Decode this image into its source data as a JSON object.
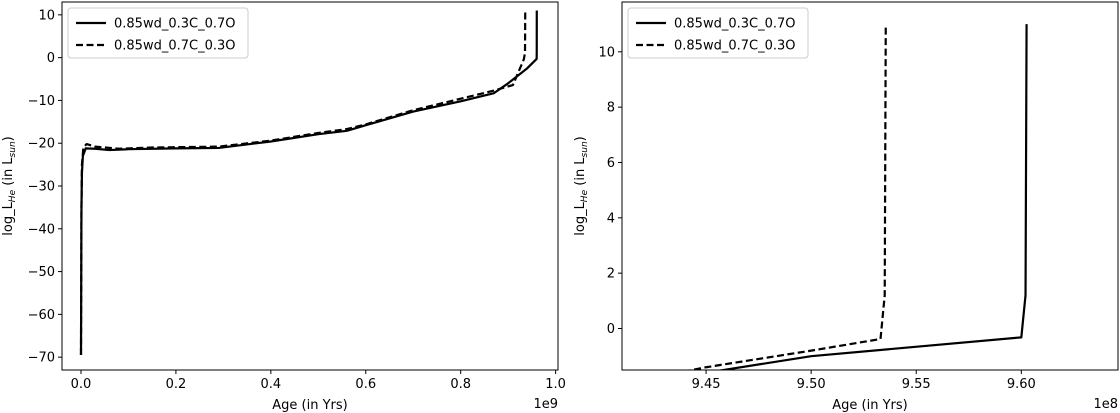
{
  "chart_data": [
    {
      "type": "line",
      "xlabel": "Age (in Yrs)",
      "ylabel": "log_L_He (in L_sun)",
      "ylabel_parts": [
        "log_L",
        "He",
        " (in L",
        "sun",
        ")"
      ],
      "x_offset_text": "1e9",
      "xlim": [
        -0.04,
        1.005
      ],
      "ylim": [
        -73,
        13
      ],
      "xticks": [
        0.0,
        0.2,
        0.4,
        0.6,
        0.8,
        1.0
      ],
      "xtick_labels": [
        "0.0",
        "0.2",
        "0.4",
        "0.6",
        "0.8",
        "1.0"
      ],
      "yticks": [
        10,
        0,
        -10,
        -20,
        -30,
        -40,
        -50,
        -60,
        -70
      ],
      "ytick_labels": [
        "10",
        "0",
        "−10",
        "−20",
        "−30",
        "−40",
        "−50",
        "−60",
        "−70"
      ],
      "legend_position": "top-left",
      "series": [
        {
          "name": "0.85wd_0.3C_0.7O",
          "style": "solid",
          "color": "#000000",
          "points": [
            [
              0.0,
              -69.5
            ],
            [
              0.001,
              -35
            ],
            [
              0.002,
              -27
            ],
            [
              0.004,
              -23
            ],
            [
              0.01,
              -21.2
            ],
            [
              0.03,
              -21.3
            ],
            [
              0.06,
              -21.6
            ],
            [
              0.1,
              -21.4
            ],
            [
              0.2,
              -21.2
            ],
            [
              0.29,
              -21.1
            ],
            [
              0.4,
              -19.6
            ],
            [
              0.5,
              -17.9
            ],
            [
              0.56,
              -17.1
            ],
            [
              0.6,
              -15.8
            ],
            [
              0.7,
              -12.6
            ],
            [
              0.8,
              -10.2
            ],
            [
              0.87,
              -8.3
            ],
            [
              0.9,
              -6
            ],
            [
              0.94,
              -2.5
            ],
            [
              0.96,
              -0.3
            ],
            [
              0.9602,
              1.2
            ],
            [
              0.9603,
              11
            ]
          ]
        },
        {
          "name": "0.85wd_0.7C_0.3O",
          "style": "dashed",
          "color": "#000000",
          "points": [
            [
              0.0,
              -69.5
            ],
            [
              0.001,
              -35
            ],
            [
              0.002,
              -25
            ],
            [
              0.005,
              -21
            ],
            [
              0.012,
              -20.2
            ],
            [
              0.03,
              -20.8
            ],
            [
              0.08,
              -21.3
            ],
            [
              0.15,
              -21
            ],
            [
              0.29,
              -20.8
            ],
            [
              0.4,
              -19.4
            ],
            [
              0.5,
              -17.6
            ],
            [
              0.56,
              -16.7
            ],
            [
              0.6,
              -15.6
            ],
            [
              0.7,
              -12.3
            ],
            [
              0.8,
              -9.6
            ],
            [
              0.87,
              -7.7
            ],
            [
              0.91,
              -6.4
            ],
            [
              0.933,
              -0.4
            ],
            [
              0.9355,
              1.2
            ],
            [
              0.936,
              11
            ]
          ]
        }
      ]
    },
    {
      "type": "line",
      "xlabel": "Age (in Yrs)",
      "ylabel": "log_L_He (in L_sun)",
      "ylabel_parts": [
        "log_L",
        "He",
        " (in L",
        "sun",
        ")"
      ],
      "x_offset_text": "1e8",
      "xlim": [
        9.41,
        9.646
      ],
      "ylim": [
        -1.5,
        11.8
      ],
      "xticks": [
        9.45,
        9.5,
        9.55,
        9.6
      ],
      "xtick_labels": [
        "9.45",
        "9.50",
        "9.55",
        "9.60"
      ],
      "yticks": [
        10,
        8,
        6,
        4,
        2,
        0
      ],
      "ytick_labels": [
        "10",
        "8",
        "6",
        "4",
        "2",
        "0"
      ],
      "legend_position": "top-left",
      "series": [
        {
          "name": "0.85wd_0.3C_0.7O",
          "style": "solid",
          "color": "#000000",
          "points": [
            [
              9.4,
              -2.2
            ],
            [
              9.5,
              -1.0
            ],
            [
              9.6,
              -0.32
            ],
            [
              9.602,
              1.2
            ],
            [
              9.6025,
              11
            ]
          ]
        },
        {
          "name": "0.85wd_0.7C_0.3O",
          "style": "dashed",
          "color": "#000000",
          "points": [
            [
              9.41,
              -2.0
            ],
            [
              9.45,
              -1.4
            ],
            [
              9.5,
              -0.8
            ],
            [
              9.533,
              -0.38
            ],
            [
              9.535,
              1.2
            ],
            [
              9.5355,
              10.95
            ]
          ]
        }
      ]
    }
  ]
}
